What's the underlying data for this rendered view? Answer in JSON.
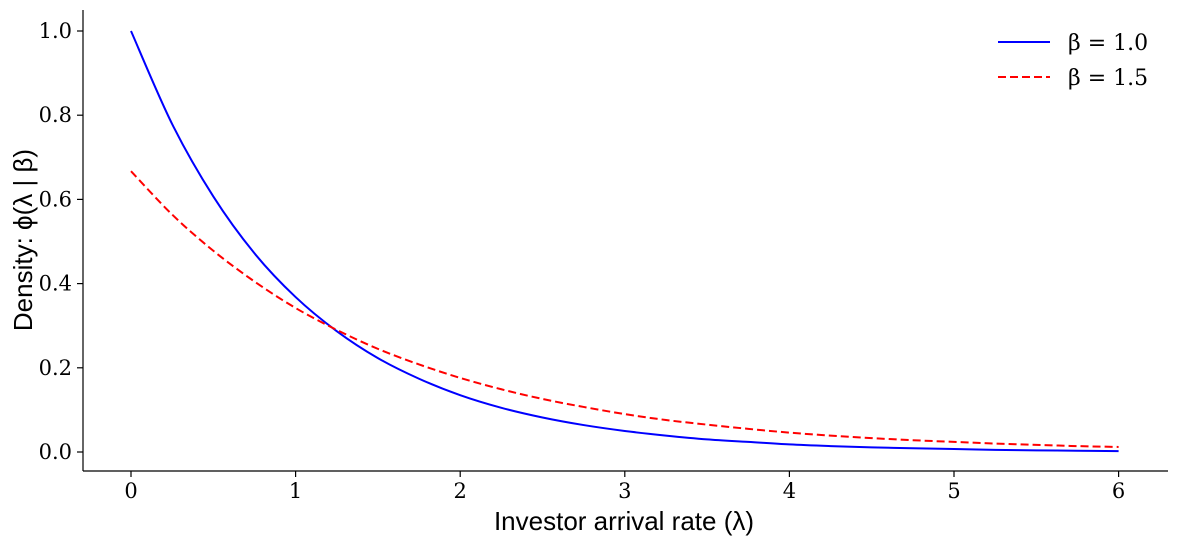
{
  "chart_data": {
    "type": "line",
    "title": "",
    "xlabel": "Investor arrival rate (λ)",
    "ylabel": "Density: ϕ(λ | β)",
    "xlim": [
      -0.3,
      6.3
    ],
    "ylim": [
      -0.05,
      1.05
    ],
    "xticks": [
      0,
      1,
      2,
      3,
      4,
      5,
      6
    ],
    "xtick_labels": [
      "0",
      "1",
      "2",
      "3",
      "4",
      "5",
      "6"
    ],
    "yticks": [
      0.0,
      0.2,
      0.4,
      0.6,
      0.8,
      1.0
    ],
    "ytick_labels": [
      "0.0",
      "0.2",
      "0.4",
      "0.6",
      "0.8",
      "1.0"
    ],
    "grid": false,
    "legend_position": "top-right",
    "x": [
      0,
      0.25,
      0.5,
      0.75,
      1,
      1.25,
      1.5,
      1.75,
      2,
      2.25,
      2.5,
      2.75,
      3,
      3.25,
      3.5,
      3.75,
      4,
      4.25,
      4.5,
      4.75,
      5,
      5.25,
      5.5,
      5.75,
      6
    ],
    "series": [
      {
        "name": "β = 1.0",
        "color": "#0000ff",
        "style": "solid",
        "values": [
          1.0,
          0.779,
          0.607,
          0.472,
          0.368,
          0.287,
          0.223,
          0.174,
          0.135,
          0.105,
          0.082,
          0.064,
          0.05,
          0.039,
          0.03,
          0.024,
          0.018,
          0.014,
          0.011,
          0.009,
          0.007,
          0.005,
          0.004,
          0.003,
          0.002
        ]
      },
      {
        "name": "β = 1.5",
        "color": "#ff0000",
        "style": "dashed",
        "values": [
          0.667,
          0.564,
          0.478,
          0.405,
          0.342,
          0.29,
          0.245,
          0.208,
          0.176,
          0.149,
          0.126,
          0.107,
          0.09,
          0.076,
          0.065,
          0.055,
          0.046,
          0.039,
          0.033,
          0.028,
          0.024,
          0.02,
          0.017,
          0.014,
          0.012
        ]
      }
    ]
  }
}
